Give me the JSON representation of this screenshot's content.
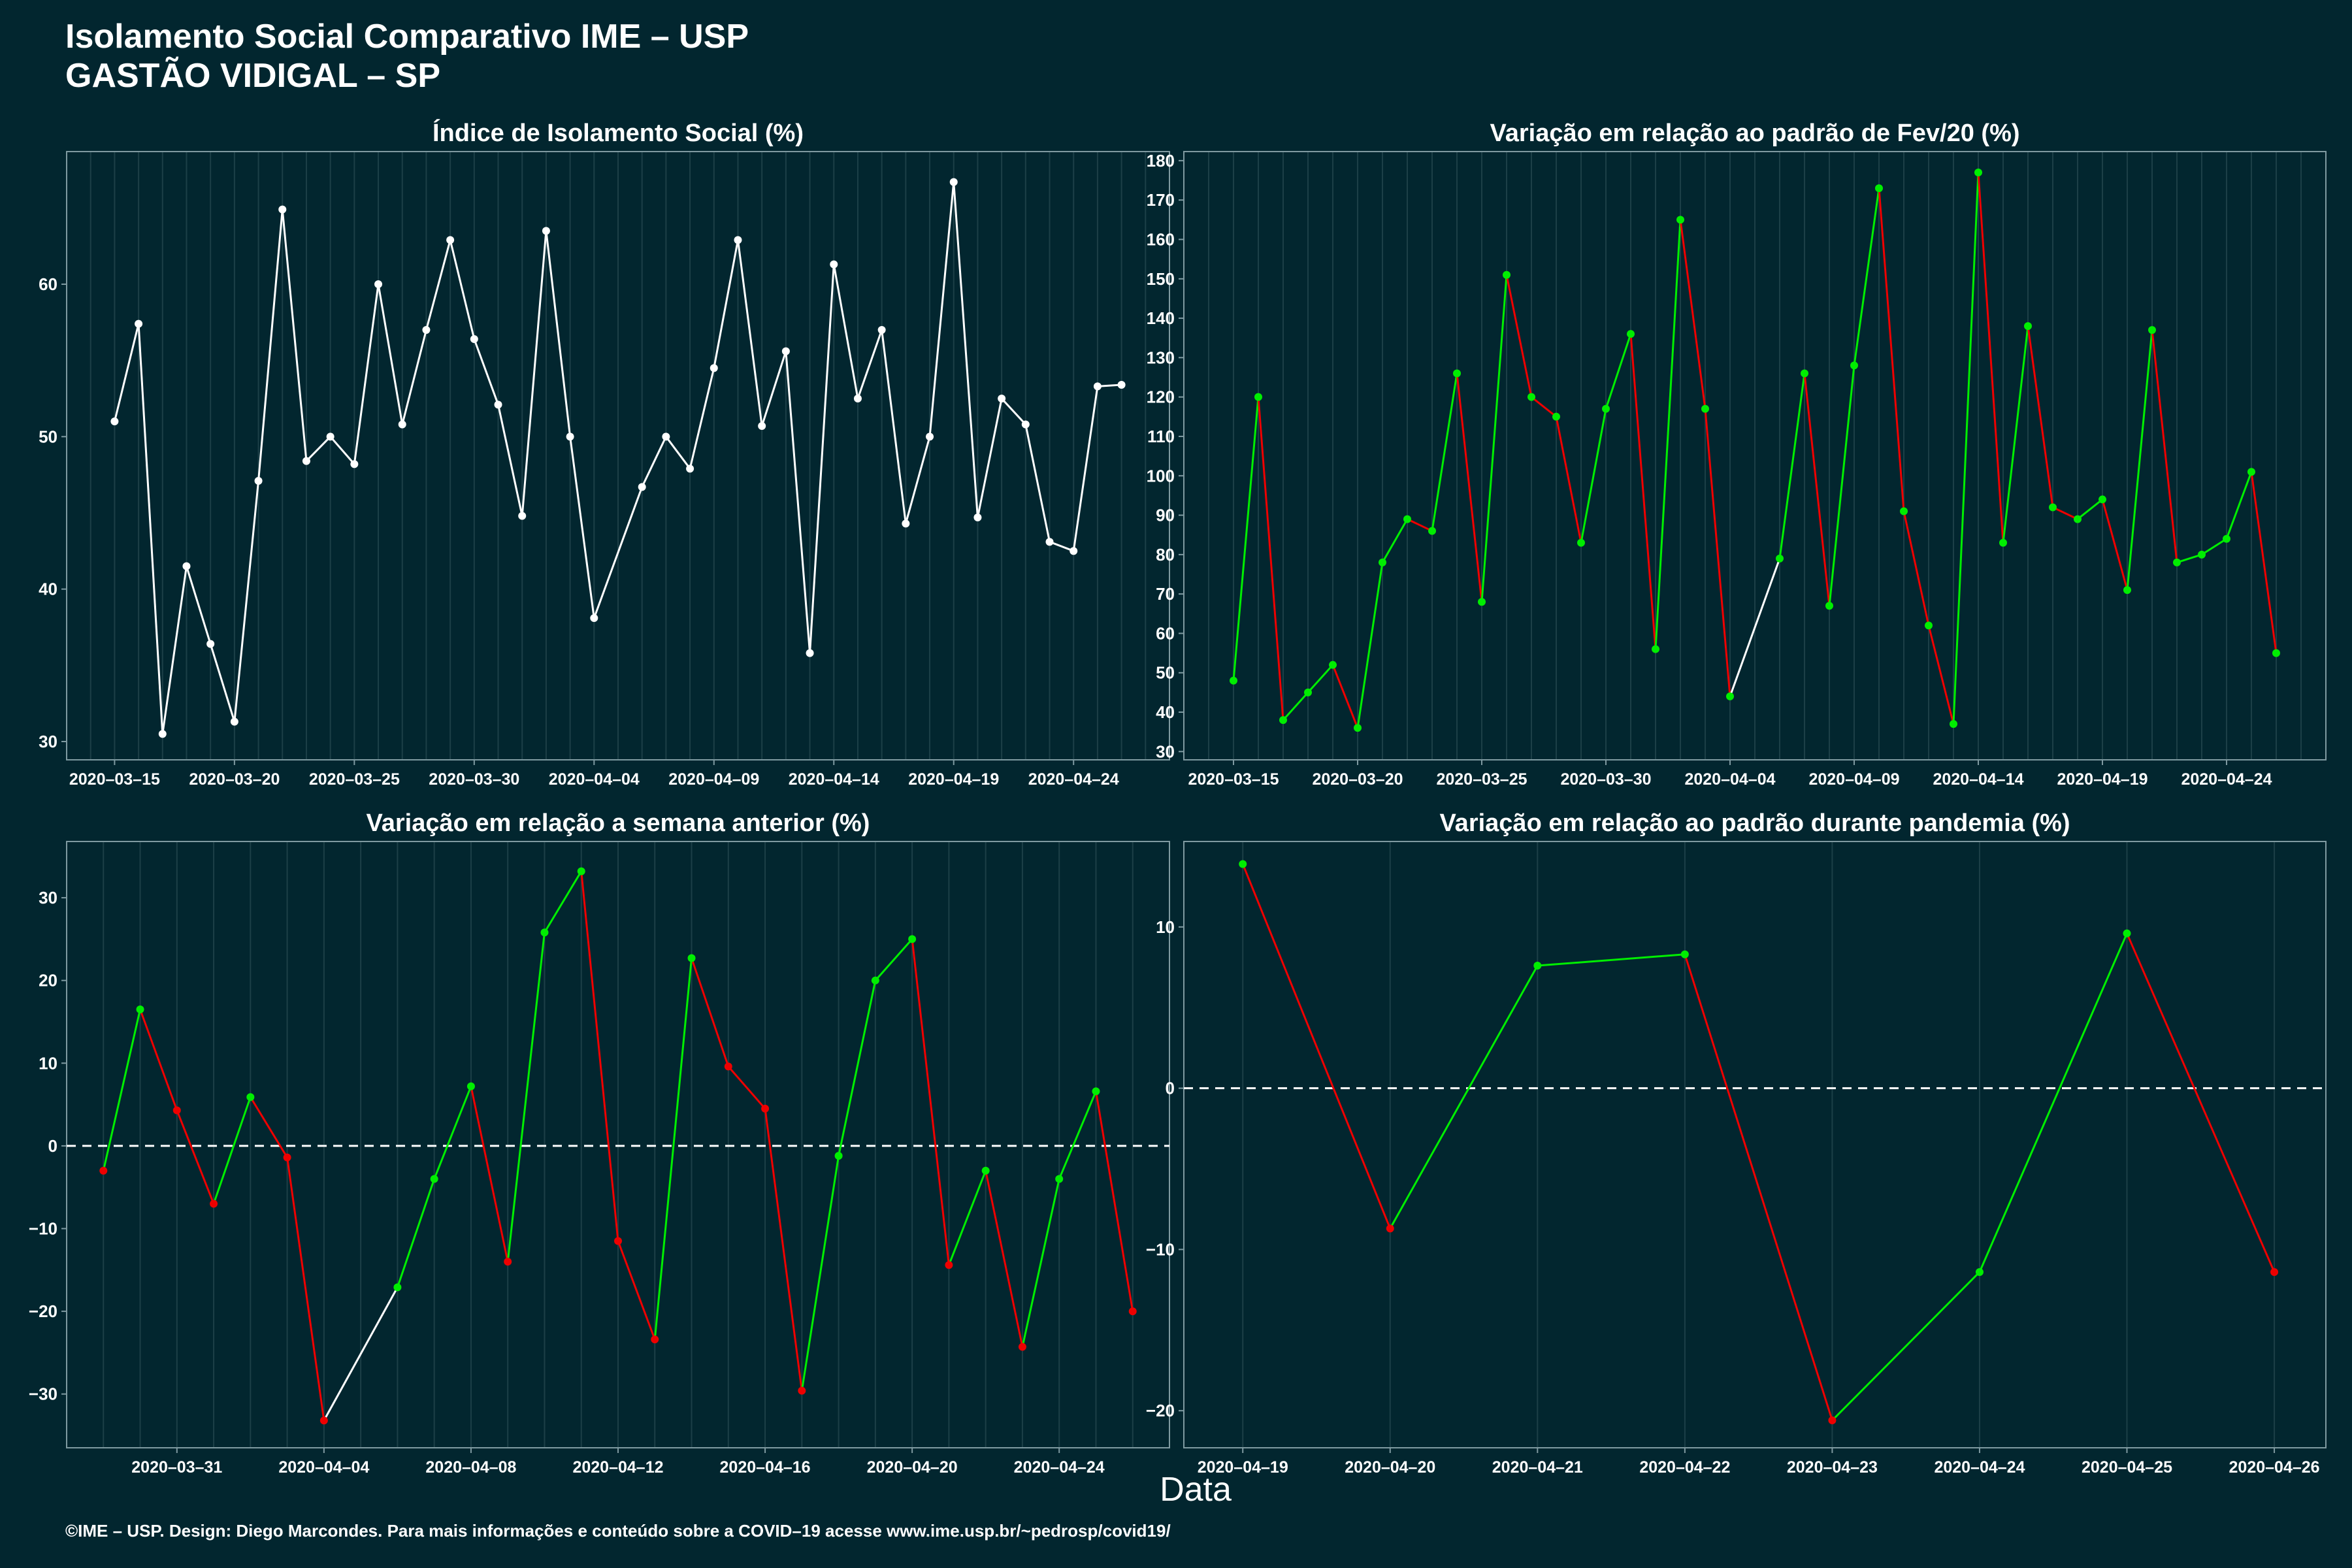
{
  "header": {
    "title_line1": "Isolamento Social Comparativo IME – USP",
    "title_line2": "GASTÃO VIDIGAL – SP"
  },
  "footer": {
    "credit": "©IME – USP. Design: Diego Marcondes. Para mais informações e conteúdo sobre a COVID–19 acesse www.ime.usp.br/~pedrosp/covid19/"
  },
  "xaxis_title": "Data",
  "colors": {
    "background": "#02262f",
    "white": "#ffffff",
    "green": "#00ee00",
    "red": "#ee0000",
    "grid": "#1c3f47",
    "axis": "#7f9aa1"
  },
  "chart_data": [
    {
      "type": "line",
      "title": "Índice de Isolamento Social (%)",
      "color_mode": "white",
      "x_start": "2020-03-15",
      "ylim": [
        28.8,
        68.7
      ],
      "yticks": [
        30,
        40,
        50,
        60
      ],
      "xtick_labels": [
        "2020-03-15",
        "2020-03-20",
        "2020-03-25",
        "2020-03-30",
        "2020-04-04",
        "2020-04-09",
        "2020-04-14",
        "2020-04-19",
        "2020-04-24"
      ],
      "xtick_dates": [
        "2020-03-15",
        "2020-03-20",
        "2020-03-25",
        "2020-03-30",
        "2020-04-04",
        "2020-04-09",
        "2020-04-14",
        "2020-04-19",
        "2020-04-24"
      ],
      "xlim": [
        "2020-03-13",
        "2020-04-28"
      ],
      "grid": true,
      "x": [
        "2020-03-15",
        "2020-03-16",
        "2020-03-17",
        "2020-03-18",
        "2020-03-19",
        "2020-03-20",
        "2020-03-21",
        "2020-03-22",
        "2020-03-23",
        "2020-03-24",
        "2020-03-25",
        "2020-03-26",
        "2020-03-27",
        "2020-03-28",
        "2020-03-29",
        "2020-03-30",
        "2020-03-31",
        "2020-04-01",
        "2020-04-02",
        "2020-04-03",
        "2020-04-04",
        "2020-04-06",
        "2020-04-07",
        "2020-04-08",
        "2020-04-09",
        "2020-04-10",
        "2020-04-11",
        "2020-04-12",
        "2020-04-13",
        "2020-04-14",
        "2020-04-15",
        "2020-04-16",
        "2020-04-17",
        "2020-04-18",
        "2020-04-19",
        "2020-04-20",
        "2020-04-21",
        "2020-04-22",
        "2020-04-23",
        "2020-04-24",
        "2020-04-25",
        "2020-04-26"
      ],
      "values": [
        51.0,
        57.4,
        30.5,
        41.5,
        36.4,
        31.3,
        47.1,
        64.9,
        48.4,
        50.0,
        48.2,
        60.0,
        50.8,
        57.0,
        62.9,
        56.4,
        52.1,
        44.8,
        63.5,
        50.0,
        38.1,
        46.7,
        50.0,
        47.9,
        54.5,
        62.9,
        50.7,
        55.6,
        35.8,
        61.3,
        52.5,
        57.0,
        44.3,
        50.0,
        66.7,
        44.7,
        52.5,
        50.8,
        43.1,
        42.5,
        53.3,
        53.4
      ]
    },
    {
      "type": "line",
      "title": "Variação em relação ao padrão de Fev/20 (%)",
      "color_mode": "green",
      "ylim": [
        27.9,
        182.3
      ],
      "yticks": [
        30,
        40,
        50,
        60,
        70,
        80,
        90,
        100,
        110,
        120,
        130,
        140,
        150,
        160,
        170,
        180
      ],
      "xtick_labels": [
        "2020-03-15",
        "2020-03-20",
        "2020-03-25",
        "2020-03-30",
        "2020-04-04",
        "2020-04-09",
        "2020-04-14",
        "2020-04-19",
        "2020-04-24"
      ],
      "xtick_dates": [
        "2020-03-15",
        "2020-03-20",
        "2020-03-25",
        "2020-03-30",
        "2020-04-04",
        "2020-04-09",
        "2020-04-14",
        "2020-04-19",
        "2020-04-24"
      ],
      "xlim": [
        "2020-03-13",
        "2020-04-28"
      ],
      "grid": true,
      "x": [
        "2020-03-15",
        "2020-03-16",
        "2020-03-17",
        "2020-03-18",
        "2020-03-19",
        "2020-03-20",
        "2020-03-21",
        "2020-03-22",
        "2020-03-23",
        "2020-03-24",
        "2020-03-25",
        "2020-03-26",
        "2020-03-27",
        "2020-03-28",
        "2020-03-29",
        "2020-03-30",
        "2020-03-31",
        "2020-04-01",
        "2020-04-02",
        "2020-04-03",
        "2020-04-04",
        "2020-04-06",
        "2020-04-07",
        "2020-04-08",
        "2020-04-09",
        "2020-04-10",
        "2020-04-11",
        "2020-04-12",
        "2020-04-13",
        "2020-04-14",
        "2020-04-15",
        "2020-04-16",
        "2020-04-17",
        "2020-04-18",
        "2020-04-19",
        "2020-04-20",
        "2020-04-21",
        "2020-04-22",
        "2020-04-23",
        "2020-04-24",
        "2020-04-25",
        "2020-04-26"
      ],
      "values": [
        48,
        120,
        38,
        45,
        52,
        36,
        78,
        89,
        86,
        126,
        68,
        151,
        120,
        115,
        83,
        117,
        136,
        56,
        165,
        117,
        44,
        79,
        126,
        67,
        128,
        173,
        91,
        62,
        37,
        177,
        83,
        138,
        92,
        89,
        94,
        71,
        137,
        78,
        80,
        84,
        101,
        55
      ]
    },
    {
      "type": "line",
      "title": "Variação em relação a semana anterior (%)",
      "color_mode": "updown",
      "baseline": 0,
      "ylim": [
        -36.5,
        36.8
      ],
      "yticks": [
        -30,
        -20,
        -10,
        0,
        10,
        20,
        30
      ],
      "xtick_labels": [
        "2020-03-31",
        "2020-04-04",
        "2020-04-08",
        "2020-04-12",
        "2020-04-16",
        "2020-04-20",
        "2020-04-24"
      ],
      "xtick_dates": [
        "2020-03-31",
        "2020-04-04",
        "2020-04-08",
        "2020-04-12",
        "2020-04-16",
        "2020-04-20",
        "2020-04-24"
      ],
      "xlim": [
        "2020-03-28",
        "2020-04-27"
      ],
      "grid": true,
      "x": [
        "2020-03-29",
        "2020-03-30",
        "2020-03-31",
        "2020-04-01",
        "2020-04-02",
        "2020-04-03",
        "2020-04-04",
        "2020-04-06",
        "2020-04-07",
        "2020-04-08",
        "2020-04-09",
        "2020-04-10",
        "2020-04-11",
        "2020-04-12",
        "2020-04-13",
        "2020-04-14",
        "2020-04-15",
        "2020-04-16",
        "2020-04-17",
        "2020-04-18",
        "2020-04-19",
        "2020-04-20",
        "2020-04-21",
        "2020-04-22",
        "2020-04-23",
        "2020-04-24",
        "2020-04-25",
        "2020-04-26"
      ],
      "values": [
        -3,
        16.5,
        4.3,
        -7,
        5.9,
        -1.4,
        -33.2,
        -17.1,
        -4,
        7.2,
        -14,
        25.8,
        33.2,
        -11.5,
        -23.4,
        22.7,
        9.6,
        4.5,
        -29.6,
        -1.2,
        20,
        25,
        -14.4,
        -3,
        -24.3,
        -4,
        6.6,
        -20
      ]
    },
    {
      "type": "line",
      "title": "Variação em relação ao padrão durante pandemia (%)",
      "color_mode": "updown",
      "baseline": 0,
      "ylim": [
        -22.3,
        15.3
      ],
      "yticks": [
        -20,
        -10,
        0,
        10
      ],
      "xtick_labels": [
        "2020-04-19",
        "2020-04-20",
        "2020-04-21",
        "2020-04-22",
        "2020-04-23",
        "2020-04-24",
        "2020-04-25",
        "2020-04-26"
      ],
      "xtick_dates": [
        "2020-04-19",
        "2020-04-20",
        "2020-04-21",
        "2020-04-22",
        "2020-04-23",
        "2020-04-24",
        "2020-04-25",
        "2020-04-26"
      ],
      "xlim": [
        "2020-04-18.6",
        "2020-04-26.35"
      ],
      "grid": true,
      "x": [
        "2020-04-19",
        "2020-04-20",
        "2020-04-21",
        "2020-04-22",
        "2020-04-23",
        "2020-04-24",
        "2020-04-25",
        "2020-04-26"
      ],
      "values": [
        13.9,
        -8.7,
        7.6,
        8.3,
        -20.6,
        -11.4,
        9.6,
        -11.4
      ]
    }
  ]
}
